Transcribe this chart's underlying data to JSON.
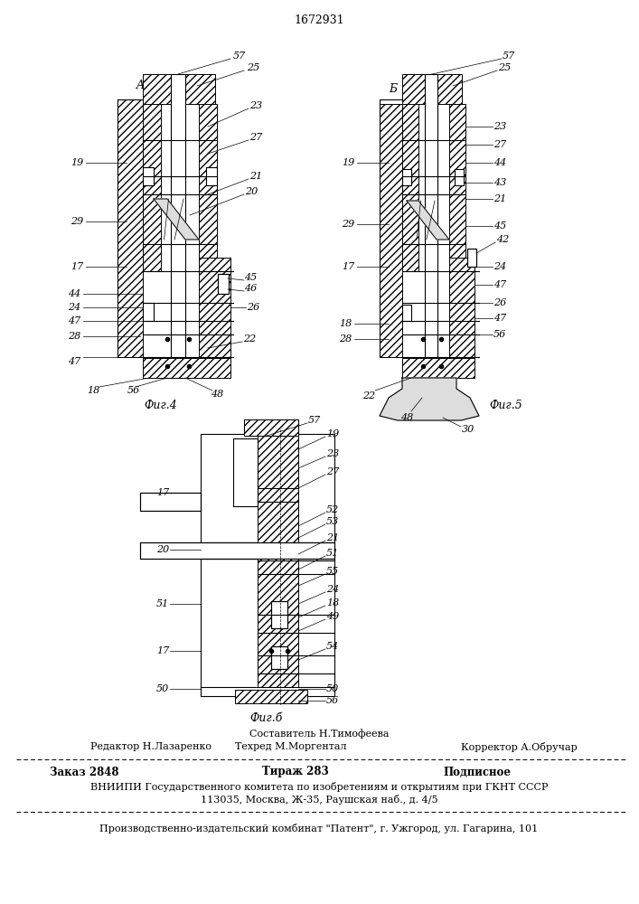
{
  "patent_number": "1672931",
  "background_color": "#ffffff",
  "fig_width": 7.07,
  "fig_height": 10.0,
  "footer": {
    "sestavitel": "Составитель Н.Тимофеева",
    "redaktor": "Редактор Н.Лазаренко",
    "tehred": "Техред М.Моргентал",
    "korrektor": "Корректор А.Обручар",
    "zakaz": "Заказ 2848",
    "tirazh": "Тираж 283",
    "podpisnoe": "Подписное",
    "vnipi": "ВНИИПИ Государственного комитета по изобретениям и открытиям при ГКНТ СССР",
    "address": "113035, Москва, Ж-35, Раушская наб., д. 4/5",
    "zavod": "Производственно-издательский комбинат \"Патент\", г. Ужгород, ул. Гагарина, 101"
  },
  "fig4_caption": "Фиг.4",
  "fig5_caption": "Фиг.5",
  "fig6_caption": "Фиг.б"
}
